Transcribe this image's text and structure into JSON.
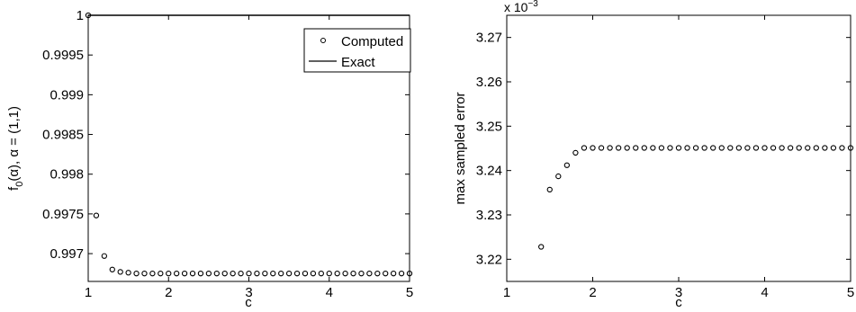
{
  "chart_data": [
    {
      "type": "scatter",
      "xlabel": "c",
      "ylabel": "f0(α), α = (1,1)",
      "ylabel_parts": {
        "main": "f",
        "sub": "0",
        "rest": "(α), α = (1,1)"
      },
      "xlim": [
        1,
        5
      ],
      "ylim": [
        0.99665,
        1.0
      ],
      "xticks": [
        1,
        2,
        3,
        4,
        5
      ],
      "xtick_labels": [
        "1",
        "2",
        "3",
        "4",
        "5"
      ],
      "yticks": [
        0.997,
        0.9975,
        0.998,
        0.9985,
        0.999,
        0.9995,
        1.0
      ],
      "ytick_labels": [
        "0.997",
        "0.9975",
        "0.998",
        "0.9985",
        "0.999",
        "0.9995",
        "1"
      ],
      "grid": false,
      "legend_position": "top-right",
      "series": [
        {
          "name": "Computed",
          "marker": "circle",
          "x": [
            1.0,
            1.1,
            1.2,
            1.3,
            1.4,
            1.5,
            1.6,
            1.7,
            1.8,
            1.9,
            2.0,
            2.1,
            2.2,
            2.3,
            2.4,
            2.5,
            2.6,
            2.7,
            2.8,
            2.9,
            3.0,
            3.1,
            3.2,
            3.3,
            3.4,
            3.5,
            3.6,
            3.7,
            3.8,
            3.9,
            4.0,
            4.1,
            4.2,
            4.3,
            4.4,
            4.5,
            4.6,
            4.7,
            4.8,
            4.9,
            5.0
          ],
          "y": [
            1.0,
            0.99748,
            0.99697,
            0.9968,
            0.99677,
            0.99676,
            0.99675,
            0.99675,
            0.99675,
            0.99675,
            0.99675,
            0.99675,
            0.99675,
            0.99675,
            0.99675,
            0.99675,
            0.99675,
            0.99675,
            0.99675,
            0.99675,
            0.99675,
            0.99675,
            0.99675,
            0.99675,
            0.99675,
            0.99675,
            0.99675,
            0.99675,
            0.99675,
            0.99675,
            0.99675,
            0.99675,
            0.99675,
            0.99675,
            0.99675,
            0.99675,
            0.99675,
            0.99675,
            0.99675,
            0.99675,
            0.99675
          ]
        },
        {
          "name": "Exact",
          "marker": "line",
          "x": [
            1,
            5
          ],
          "y": [
            1.0,
            1.0
          ]
        }
      ]
    },
    {
      "type": "scatter",
      "xlabel": "c",
      "ylabel": "max sampled error",
      "multiplier_label": {
        "base": "x 10",
        "exponent": "−3"
      },
      "xlim": [
        1,
        5
      ],
      "ylim": [
        3.215,
        3.275
      ],
      "xticks": [
        1,
        2,
        3,
        4,
        5
      ],
      "xtick_labels": [
        "1",
        "2",
        "3",
        "4",
        "5"
      ],
      "yticks": [
        3.22,
        3.23,
        3.24,
        3.25,
        3.26,
        3.27
      ],
      "ytick_labels": [
        "3.22",
        "3.23",
        "3.24",
        "3.25",
        "3.26",
        "3.27"
      ],
      "grid": false,
      "series": [
        {
          "marker": "circle",
          "x": [
            1.4,
            1.5,
            1.6,
            1.7,
            1.8,
            1.9,
            2.0,
            2.1,
            2.2,
            2.3,
            2.4,
            2.5,
            2.6,
            2.7,
            2.8,
            2.9,
            3.0,
            3.1,
            3.2,
            3.3,
            3.4,
            3.5,
            3.6,
            3.7,
            3.8,
            3.9,
            4.0,
            4.1,
            4.2,
            4.3,
            4.4,
            4.5,
            4.6,
            4.7,
            4.8,
            4.9,
            5.0
          ],
          "y": [
            3.2228,
            3.2357,
            3.2387,
            3.2412,
            3.244,
            3.2451,
            3.2451,
            3.2451,
            3.2451,
            3.2451,
            3.2451,
            3.2451,
            3.2451,
            3.2451,
            3.2451,
            3.2451,
            3.2451,
            3.2451,
            3.2451,
            3.2451,
            3.2451,
            3.2451,
            3.2451,
            3.2451,
            3.2451,
            3.2451,
            3.2451,
            3.2451,
            3.2451,
            3.2451,
            3.2451,
            3.2451,
            3.2451,
            3.2451,
            3.2451,
            3.2451,
            3.2451
          ]
        }
      ]
    }
  ]
}
